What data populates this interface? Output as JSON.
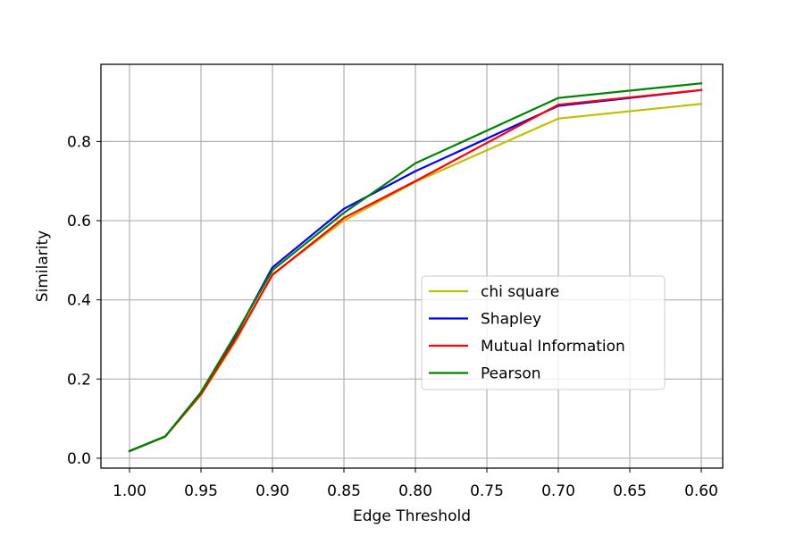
{
  "chart_data": {
    "type": "line",
    "xlabel": "Edge Threshold",
    "ylabel": "Similarity",
    "x": [
      1.0,
      0.975,
      0.95,
      0.925,
      0.9,
      0.85,
      0.8,
      0.7,
      0.6
    ],
    "x_ticks": [
      "1.00",
      "0.95",
      "0.90",
      "0.85",
      "0.80",
      "0.75",
      "0.70",
      "0.65",
      "0.60"
    ],
    "x_tick_values": [
      1.0,
      0.95,
      0.9,
      0.85,
      0.8,
      0.75,
      0.7,
      0.65,
      0.6
    ],
    "y_ticks": [
      "0.0",
      "0.2",
      "0.4",
      "0.6",
      "0.8"
    ],
    "y_tick_values": [
      0.0,
      0.2,
      0.4,
      0.6,
      0.8
    ],
    "xlim": [
      1.02,
      0.585
    ],
    "ylim": [
      -0.025,
      0.995
    ],
    "x_reversed": true,
    "grid": true,
    "legend_position": "center-right",
    "series": [
      {
        "name": "chi square",
        "color": "#bfbf00",
        "values": [
          0.018,
          0.055,
          0.16,
          0.3,
          0.465,
          0.6,
          0.698,
          0.858,
          0.895
        ]
      },
      {
        "name": "Shapley",
        "color": "#0000ff",
        "values": [
          0.018,
          0.055,
          0.165,
          0.315,
          0.482,
          0.63,
          0.725,
          0.89,
          0.93
        ]
      },
      {
        "name": "Mutual Information",
        "color": "#ff0000",
        "values": [
          0.018,
          0.055,
          0.162,
          0.305,
          0.463,
          0.607,
          0.7,
          0.893,
          0.93
        ]
      },
      {
        "name": "Pearson",
        "color": "#008000",
        "values": [
          0.018,
          0.055,
          0.167,
          0.318,
          0.475,
          0.62,
          0.745,
          0.91,
          0.947
        ]
      }
    ]
  }
}
